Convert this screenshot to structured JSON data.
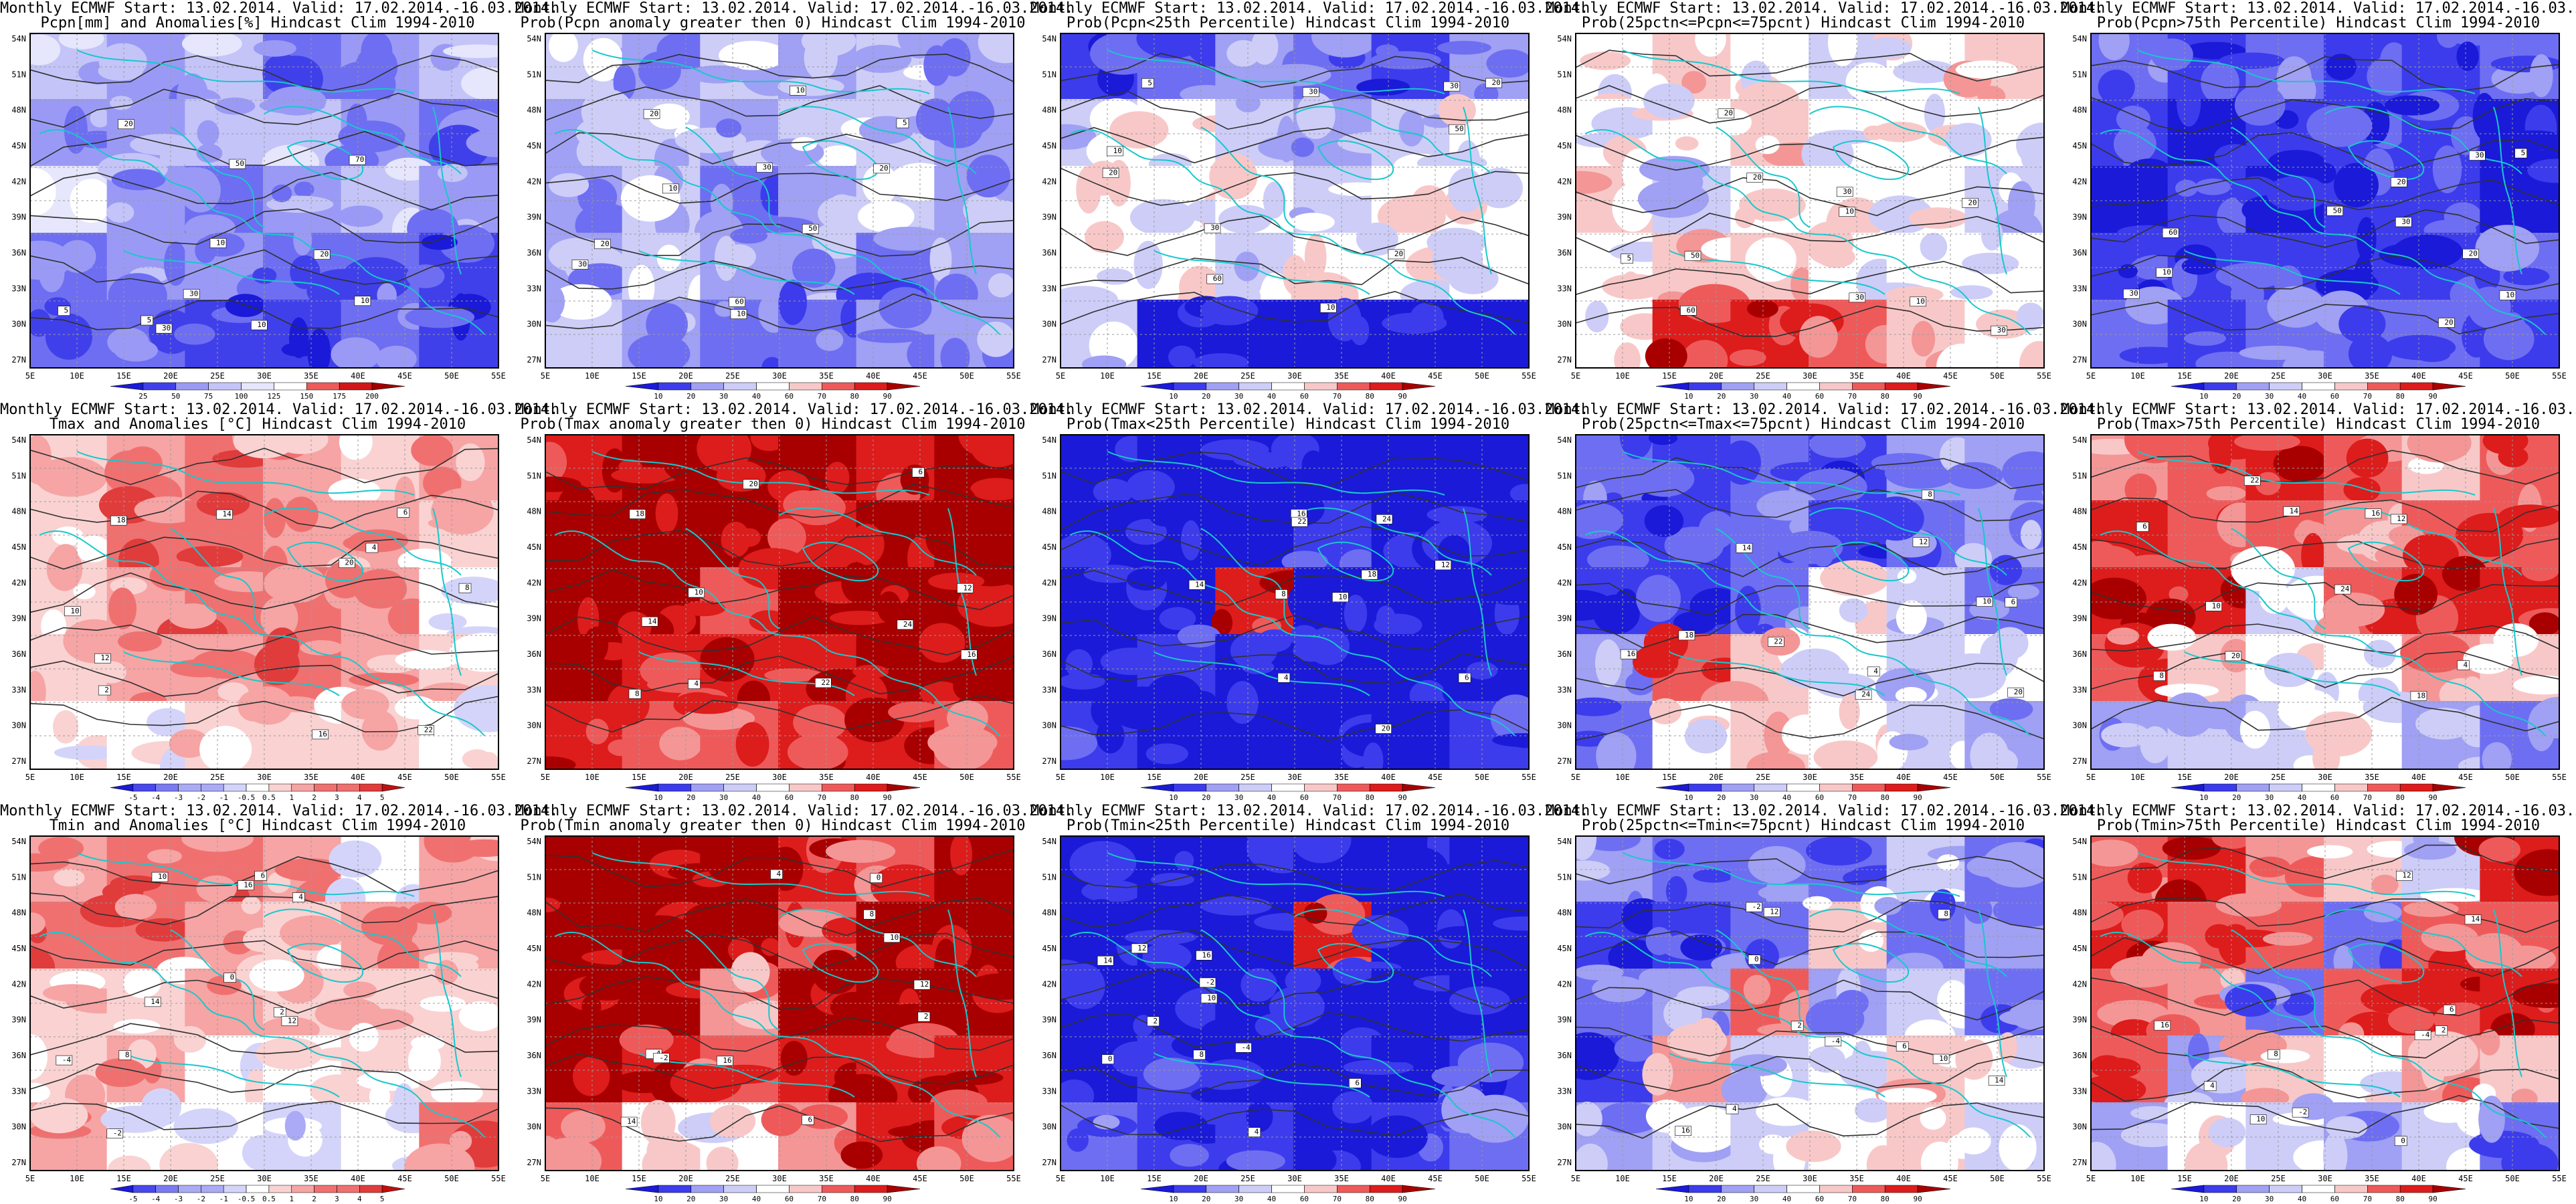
{
  "header_line": "Monthly ECMWF Start: 13.02.2014. Valid: 17.02.2014.-16.03.2014.",
  "lon_labels": [
    "5E",
    "10E",
    "15E",
    "20E",
    "25E",
    "30E",
    "35E",
    "40E",
    "45E",
    "50E",
    "55E"
  ],
  "lat_labels": [
    "54N",
    "51N",
    "48N",
    "45N",
    "42N",
    "39N",
    "36N",
    "33N",
    "30N",
    "27N"
  ],
  "colors": {
    "coast": "#18c8cc",
    "contour": "#303030",
    "frame": "#000000",
    "prob_scale": [
      "#1a1ad8",
      "#3c3cec",
      "#6e6ef2",
      "#a0a0f4",
      "#cdcdf8",
      "#ffffff",
      "#f8c8c8",
      "#f49696",
      "#ee5a5a",
      "#dd1c1c",
      "#a80000"
    ],
    "anom_scale": [
      "#1a1ad8",
      "#4848ee",
      "#7a7af2",
      "#aaaaf6",
      "#d4d4fa",
      "#ffffff",
      "#fad2d2",
      "#f6a4a4",
      "#f07070",
      "#e03c3c",
      "#c01010"
    ],
    "precip_scale": [
      "#1a1ad8",
      "#4040ea",
      "#6e6ef2",
      "#9a9af6",
      "#c4c4f8",
      "#e6e6fc",
      "#ffffff",
      "#f6b0b0",
      "#ec5a5a",
      "#d01818",
      "#a00000"
    ]
  },
  "colorbars": {
    "precip": [
      "25",
      "50",
      "75",
      "100",
      "125",
      "150",
      "175",
      "200"
    ],
    "prob": [
      "10",
      "20",
      "30",
      "40",
      "60",
      "70",
      "80",
      "90"
    ],
    "anom": [
      "-5",
      "-4",
      "-3",
      "-2",
      "-1",
      "-0.5",
      "0.5",
      "1",
      "2",
      "3",
      "4",
      "5"
    ]
  },
  "panels": [
    {
      "subtitle": "Pcpn[mm] and Anomalies[%] Hindcast Clim 1994-2010",
      "scale": "precip",
      "bar": "precip",
      "fill": [
        4,
        3,
        4,
        2,
        3,
        4,
        3,
        3,
        4,
        4,
        3,
        2,
        5,
        3,
        2,
        3,
        4,
        3,
        2,
        3,
        3,
        2,
        2,
        1,
        2,
        2,
        1,
        1,
        2,
        1
      ],
      "numbers": [
        "5",
        "10",
        "30",
        "50",
        "10",
        "70",
        "20",
        "5",
        "10",
        "20",
        "30"
      ]
    },
    {
      "subtitle": "Prob(Pcpn anomaly greater then 0) Hindcast Clim 1994-2010",
      "scale": "prob",
      "bar": "prob",
      "fill": [
        4,
        3,
        4,
        3,
        4,
        3,
        3,
        4,
        3,
        4,
        4,
        3,
        3,
        4,
        2,
        3,
        4,
        3,
        3,
        4,
        3,
        3,
        2,
        3,
        4,
        3,
        2,
        2,
        3,
        3
      ],
      "numbers": [
        "10",
        "30",
        "50",
        "20",
        "60",
        "5",
        "20",
        "10",
        "30",
        "20",
        "10"
      ]
    },
    {
      "subtitle": "Prob(Pcpn<25th Percentile) Hindcast Clim 1994-2010",
      "scale": "prob",
      "bar": "prob",
      "fill": [
        1,
        2,
        3,
        2,
        1,
        3,
        4,
        5,
        4,
        3,
        4,
        5,
        5,
        5,
        5,
        4,
        5,
        5,
        5,
        5,
        4,
        5,
        5,
        5,
        4,
        0,
        0,
        0,
        0,
        0
      ],
      "numbers": [
        "10",
        "30",
        "50",
        "20",
        "60",
        "30",
        "20",
        "10",
        "30",
        "20",
        "5"
      ]
    },
    {
      "subtitle": "Prob(25pctn<=Pcpn<=75pcnt) Hindcast Clim 1994-2010",
      "scale": "prob",
      "bar": "prob",
      "fill": [
        5,
        6,
        5,
        4,
        5,
        6,
        5,
        5,
        6,
        5,
        5,
        5,
        6,
        4,
        5,
        5,
        5,
        4,
        5,
        6,
        6,
        5,
        5,
        5,
        5,
        9,
        9,
        8,
        6,
        5
      ],
      "numbers": [
        "10",
        "30",
        "60",
        "20",
        "50",
        "30",
        "20",
        "10",
        "30",
        "20",
        "5"
      ]
    },
    {
      "subtitle": "Prob(Pcpn>75th Percentile) Hindcast Clim 1994-2010",
      "scale": "prob",
      "bar": "prob",
      "fill": [
        2,
        1,
        2,
        1,
        1,
        2,
        1,
        0,
        1,
        1,
        1,
        0,
        0,
        1,
        0,
        1,
        1,
        0,
        1,
        1,
        1,
        1,
        1,
        2,
        2,
        1,
        2,
        2,
        2,
        1
      ],
      "numbers": [
        "10",
        "30",
        "50",
        "20",
        "60",
        "30",
        "20",
        "10",
        "30",
        "20",
        "5"
      ]
    },
    {
      "subtitle": "Tmax and Anomalies [°C] Hindcast Clim 1994-2010",
      "scale": "anom",
      "bar": "anom",
      "fill": [
        6,
        7,
        8,
        7,
        6,
        7,
        6,
        8,
        8,
        7,
        7,
        6,
        6,
        7,
        8,
        8,
        7,
        5,
        6,
        7,
        7,
        8,
        7,
        6,
        5,
        5,
        6,
        6,
        6,
        5
      ],
      "numbers": [
        "2",
        "4",
        "6",
        "8",
        "10",
        "12",
        "14",
        "16",
        "18",
        "20",
        "22"
      ]
    },
    {
      "subtitle": "Prob(Tmax anomaly greater then 0) Hindcast Clim 1994-2010",
      "scale": "prob",
      "bar": "prob",
      "fill": [
        9,
        10,
        10,
        10,
        9,
        10,
        10,
        10,
        10,
        9,
        10,
        10,
        10,
        10,
        8,
        10,
        10,
        10,
        10,
        9,
        9,
        9,
        10,
        10,
        9,
        8,
        8,
        9,
        9,
        8
      ],
      "numbers": [
        "4",
        "6",
        "8",
        "10",
        "12",
        "14",
        "16",
        "18",
        "20",
        "22",
        "24"
      ]
    },
    {
      "subtitle": "Prob(Tmax<25th Percentile) Hindcast Clim 1994-2010",
      "scale": "prob",
      "bar": "prob",
      "fill": [
        0,
        0,
        0,
        0,
        0,
        0,
        0,
        0,
        0,
        1,
        0,
        0,
        0,
        0,
        9,
        0,
        0,
        0,
        0,
        1,
        0,
        0,
        0,
        0,
        1,
        0,
        0,
        0,
        0,
        1
      ],
      "numbers": [
        "4",
        "6",
        "8",
        "10",
        "12",
        "14",
        "16",
        "18",
        "20",
        "22",
        "24"
      ]
    },
    {
      "subtitle": "Prob(25pctn<=Tmax<=75pcnt) Hindcast Clim 1994-2010",
      "scale": "prob",
      "bar": "prob",
      "fill": [
        2,
        1,
        2,
        1,
        3,
        3,
        1,
        1,
        2,
        1,
        2,
        3,
        1,
        1,
        2,
        5,
        4,
        2,
        3,
        8,
        6,
        5,
        4,
        5,
        2,
        5,
        6,
        5,
        4,
        3
      ],
      "numbers": [
        "4",
        "6",
        "8",
        "10",
        "12",
        "14",
        "16",
        "18",
        "20",
        "22",
        "24"
      ]
    },
    {
      "subtitle": "Prob(Tmax>75th Percentile) Hindcast Clim 1994-2010",
      "scale": "prob",
      "bar": "prob",
      "fill": [
        7,
        8,
        9,
        8,
        6,
        8,
        9,
        8,
        8,
        7,
        8,
        8,
        9,
        9,
        4,
        8,
        9,
        9,
        8,
        6,
        5,
        5,
        7,
        6,
        3,
        4,
        4,
        5,
        3,
        2
      ],
      "numbers": [
        "4",
        "6",
        "8",
        "10",
        "12",
        "14",
        "16",
        "18",
        "20",
        "22",
        "24"
      ]
    },
    {
      "subtitle": "Tmin and Anomalies [°C] Hindcast Clim 1994-2010",
      "scale": "anom",
      "bar": "anom",
      "fill": [
        7,
        8,
        8,
        7,
        5,
        7,
        8,
        8,
        7,
        6,
        7,
        7,
        6,
        6,
        7,
        6,
        6,
        6,
        6,
        7,
        5,
        5,
        6,
        6,
        7,
        5,
        5,
        4,
        5,
        8
      ],
      "numbers": [
        "-4",
        "-2",
        "0",
        "2",
        "4",
        "6",
        "8",
        "10",
        "12",
        "14",
        "16"
      ]
    },
    {
      "subtitle": "Prob(Tmin anomaly greater then 0) Hindcast Clim 1994-2010",
      "scale": "prob",
      "bar": "prob",
      "fill": [
        10,
        10,
        10,
        9,
        8,
        10,
        10,
        10,
        10,
        8,
        10,
        10,
        10,
        10,
        7,
        10,
        10,
        10,
        10,
        9,
        8,
        9,
        9,
        9,
        8,
        5,
        5,
        7,
        9,
        8
      ],
      "numbers": [
        "-4",
        "-2",
        "0",
        "2",
        "4",
        "6",
        "8",
        "10",
        "12",
        "14",
        "16"
      ]
    },
    {
      "subtitle": "Prob(Tmin<25th Percentile) Hindcast Clim 1994-2010",
      "scale": "prob",
      "bar": "prob",
      "fill": [
        0,
        0,
        0,
        0,
        0,
        0,
        0,
        0,
        0,
        9,
        0,
        0,
        0,
        0,
        0,
        0,
        0,
        0,
        0,
        1,
        0,
        0,
        0,
        1,
        2,
        1,
        1,
        0,
        1,
        2
      ],
      "numbers": [
        "-4",
        "-2",
        "0",
        "2",
        "4",
        "6",
        "8",
        "10",
        "12",
        "14",
        "16"
      ]
    },
    {
      "subtitle": "Prob(25pctn<=Tmin<=75pcnt) Hindcast Clim 1994-2010",
      "scale": "prob",
      "bar": "prob",
      "fill": [
        3,
        2,
        2,
        2,
        4,
        2,
        1,
        1,
        2,
        6,
        2,
        3,
        2,
        3,
        8,
        3,
        4,
        2,
        1,
        7,
        4,
        5,
        6,
        5,
        3,
        4,
        4,
        5,
        6,
        4
      ],
      "numbers": [
        "-4",
        "-2",
        "0",
        "2",
        "4",
        "6",
        "8",
        "10",
        "12",
        "14",
        "16"
      ]
    },
    {
      "subtitle": "Prob(Tmin>75th Percentile) Hindcast Clim 1994-2010",
      "scale": "prob",
      "bar": "prob",
      "fill": [
        8,
        9,
        7,
        6,
        4,
        9,
        9,
        8,
        8,
        2,
        8,
        8,
        8,
        7,
        2,
        8,
        9,
        9,
        8,
        3,
        6,
        5,
        7,
        6,
        3,
        5,
        4,
        3,
        4,
        2
      ],
      "numbers": [
        "-4",
        "-2",
        "0",
        "2",
        "4",
        "6",
        "8",
        "10",
        "12",
        "14",
        "16"
      ]
    }
  ]
}
